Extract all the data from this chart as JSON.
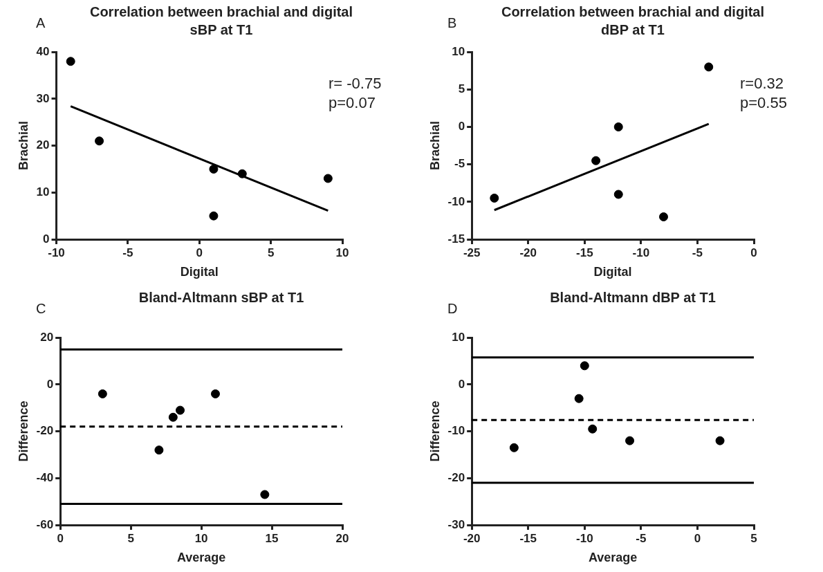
{
  "chart_data": [
    {
      "type": "scatter",
      "title": "Correlation between brachial and digital sBP at T1",
      "xlabel": "Digital",
      "ylabel": "Brachial",
      "annotations": [
        "A",
        "r= -0.75",
        "p=0.07"
      ],
      "xlim": [
        -10,
        10
      ],
      "xticks": [
        -10,
        -5,
        0,
        5,
        10
      ],
      "ylim": [
        0,
        40
      ],
      "yticks": [
        0,
        10,
        20,
        30,
        40
      ],
      "grid": false,
      "legend": false,
      "series": [
        {
          "type": "scatter",
          "marker": "circle",
          "color": "#000000",
          "x": [
            -9,
            -7,
            1,
            1,
            3,
            9
          ],
          "values": [
            38,
            21,
            15,
            5,
            14,
            13
          ]
        },
        {
          "type": "line",
          "marker": "none",
          "color": "#000000",
          "x": [
            -9,
            9
          ],
          "values": [
            28.4,
            6.1
          ]
        }
      ]
    },
    {
      "type": "scatter",
      "title": "Correlation between brachial and digital dBP at T1",
      "xlabel": "Digital",
      "ylabel": "Brachial",
      "annotations": [
        "B",
        "r=0.32",
        "p=0.55"
      ],
      "xlim": [
        -25,
        0
      ],
      "xticks": [
        -25,
        -20,
        -15,
        -10,
        -5,
        0
      ],
      "ylim": [
        -15,
        10
      ],
      "yticks": [
        -15,
        -10,
        -5,
        0,
        5,
        10
      ],
      "grid": false,
      "legend": false,
      "series": [
        {
          "type": "scatter",
          "marker": "circle",
          "color": "#000000",
          "x": [
            -23,
            -14,
            -12,
            -12,
            -8,
            -4
          ],
          "values": [
            -9.5,
            -4.5,
            0,
            -9,
            -12,
            8
          ]
        },
        {
          "type": "line",
          "marker": "none",
          "color": "#000000",
          "x": [
            -23,
            -4
          ],
          "values": [
            -11.1,
            0.4
          ]
        }
      ]
    },
    {
      "type": "scatter",
      "title": "Bland-Altmann sBP at T1",
      "xlabel": "Average",
      "ylabel": "Difference",
      "annotations": [
        "C"
      ],
      "xlim": [
        0,
        20
      ],
      "xticks": [
        0,
        5,
        10,
        15,
        20
      ],
      "ylim": [
        -60,
        20
      ],
      "yticks": [
        -60,
        -40,
        -20,
        0,
        20
      ],
      "grid": false,
      "legend": false,
      "marker": "circle",
      "ref_lines": [
        {
          "axis": "y",
          "value": 15,
          "color": "#000000",
          "line_style": "solid"
        },
        {
          "axis": "y",
          "value": -18,
          "color": "#000000",
          "line_style": "dashed"
        },
        {
          "axis": "y",
          "value": -51,
          "color": "#000000",
          "line_style": "solid"
        }
      ],
      "series": [
        {
          "type": "scatter",
          "color": "#000000",
          "x": [
            3,
            7,
            8,
            8.5,
            11,
            14.5
          ],
          "values": [
            -4,
            -28,
            -14,
            -11,
            -4,
            -47
          ]
        }
      ]
    },
    {
      "type": "scatter",
      "title": "Bland-Altmann dBP at T1",
      "xlabel": "Average",
      "ylabel": "Difference",
      "annotations": [
        "D"
      ],
      "xlim": [
        -20,
        5
      ],
      "xticks": [
        -20,
        -15,
        -10,
        -5,
        0,
        5
      ],
      "ylim": [
        -30,
        10
      ],
      "yticks": [
        -30,
        -20,
        -10,
        0,
        10
      ],
      "grid": false,
      "legend": false,
      "marker": "circle",
      "ref_lines": [
        {
          "axis": "y",
          "value": 5.8,
          "color": "#000000",
          "line_style": "solid"
        },
        {
          "axis": "y",
          "value": -7.6,
          "color": "#000000",
          "line_style": "dashed"
        },
        {
          "axis": "y",
          "value": -21,
          "color": "#000000",
          "line_style": "solid"
        }
      ],
      "series": [
        {
          "type": "scatter",
          "color": "#000000",
          "x": [
            -16.25,
            -10.5,
            -10,
            -9.3,
            -6,
            2
          ],
          "values": [
            -13.5,
            -3,
            4,
            -9.5,
            -12,
            -12
          ]
        }
      ]
    }
  ]
}
